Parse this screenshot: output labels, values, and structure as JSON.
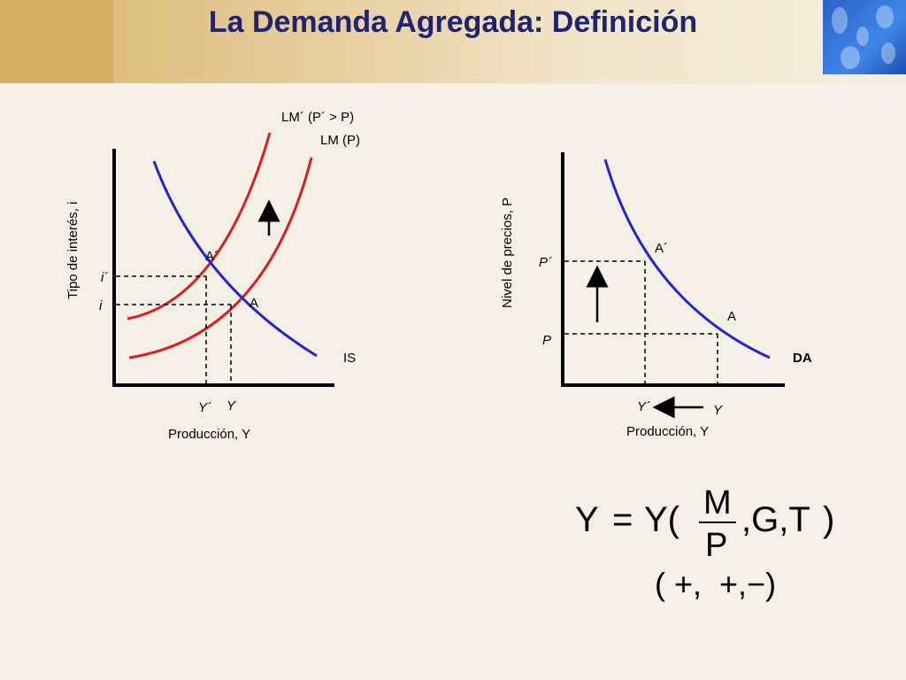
{
  "header": {
    "title": "La Demanda Agregada: Definición"
  },
  "left_chart": {
    "ylabel": "Tipo de interés, i",
    "xlabel": "Producción, Y",
    "curve_lm_prime": "LM´ (P´ > P)",
    "curve_lm": "LM (P)",
    "curve_is": "IS",
    "point_a_prime": "A´",
    "point_a": "A",
    "tick_i_prime": "i´",
    "tick_i": "i",
    "tick_y_prime": "Y´",
    "tick_y": "Y"
  },
  "right_chart": {
    "ylabel": "Nivel de precios, P",
    "xlabel": "Producción, Y",
    "curve_da": "DA",
    "point_a_prime": "A´",
    "point_a": "A",
    "tick_p_prime": "P´",
    "tick_p": "P",
    "tick_y_prime": "Y´",
    "tick_y": "Y"
  },
  "equation": {
    "lhs": "Y",
    "equals": "=",
    "fn": "Y(",
    "numerator": "M",
    "denominator": "P",
    "args": ",G,T",
    "close": ")",
    "signs": "( +,  +,−)"
  },
  "colors": {
    "title": "#1f2470",
    "is_curve": "#2323d6",
    "lm_curve": "#e01b1b"
  }
}
